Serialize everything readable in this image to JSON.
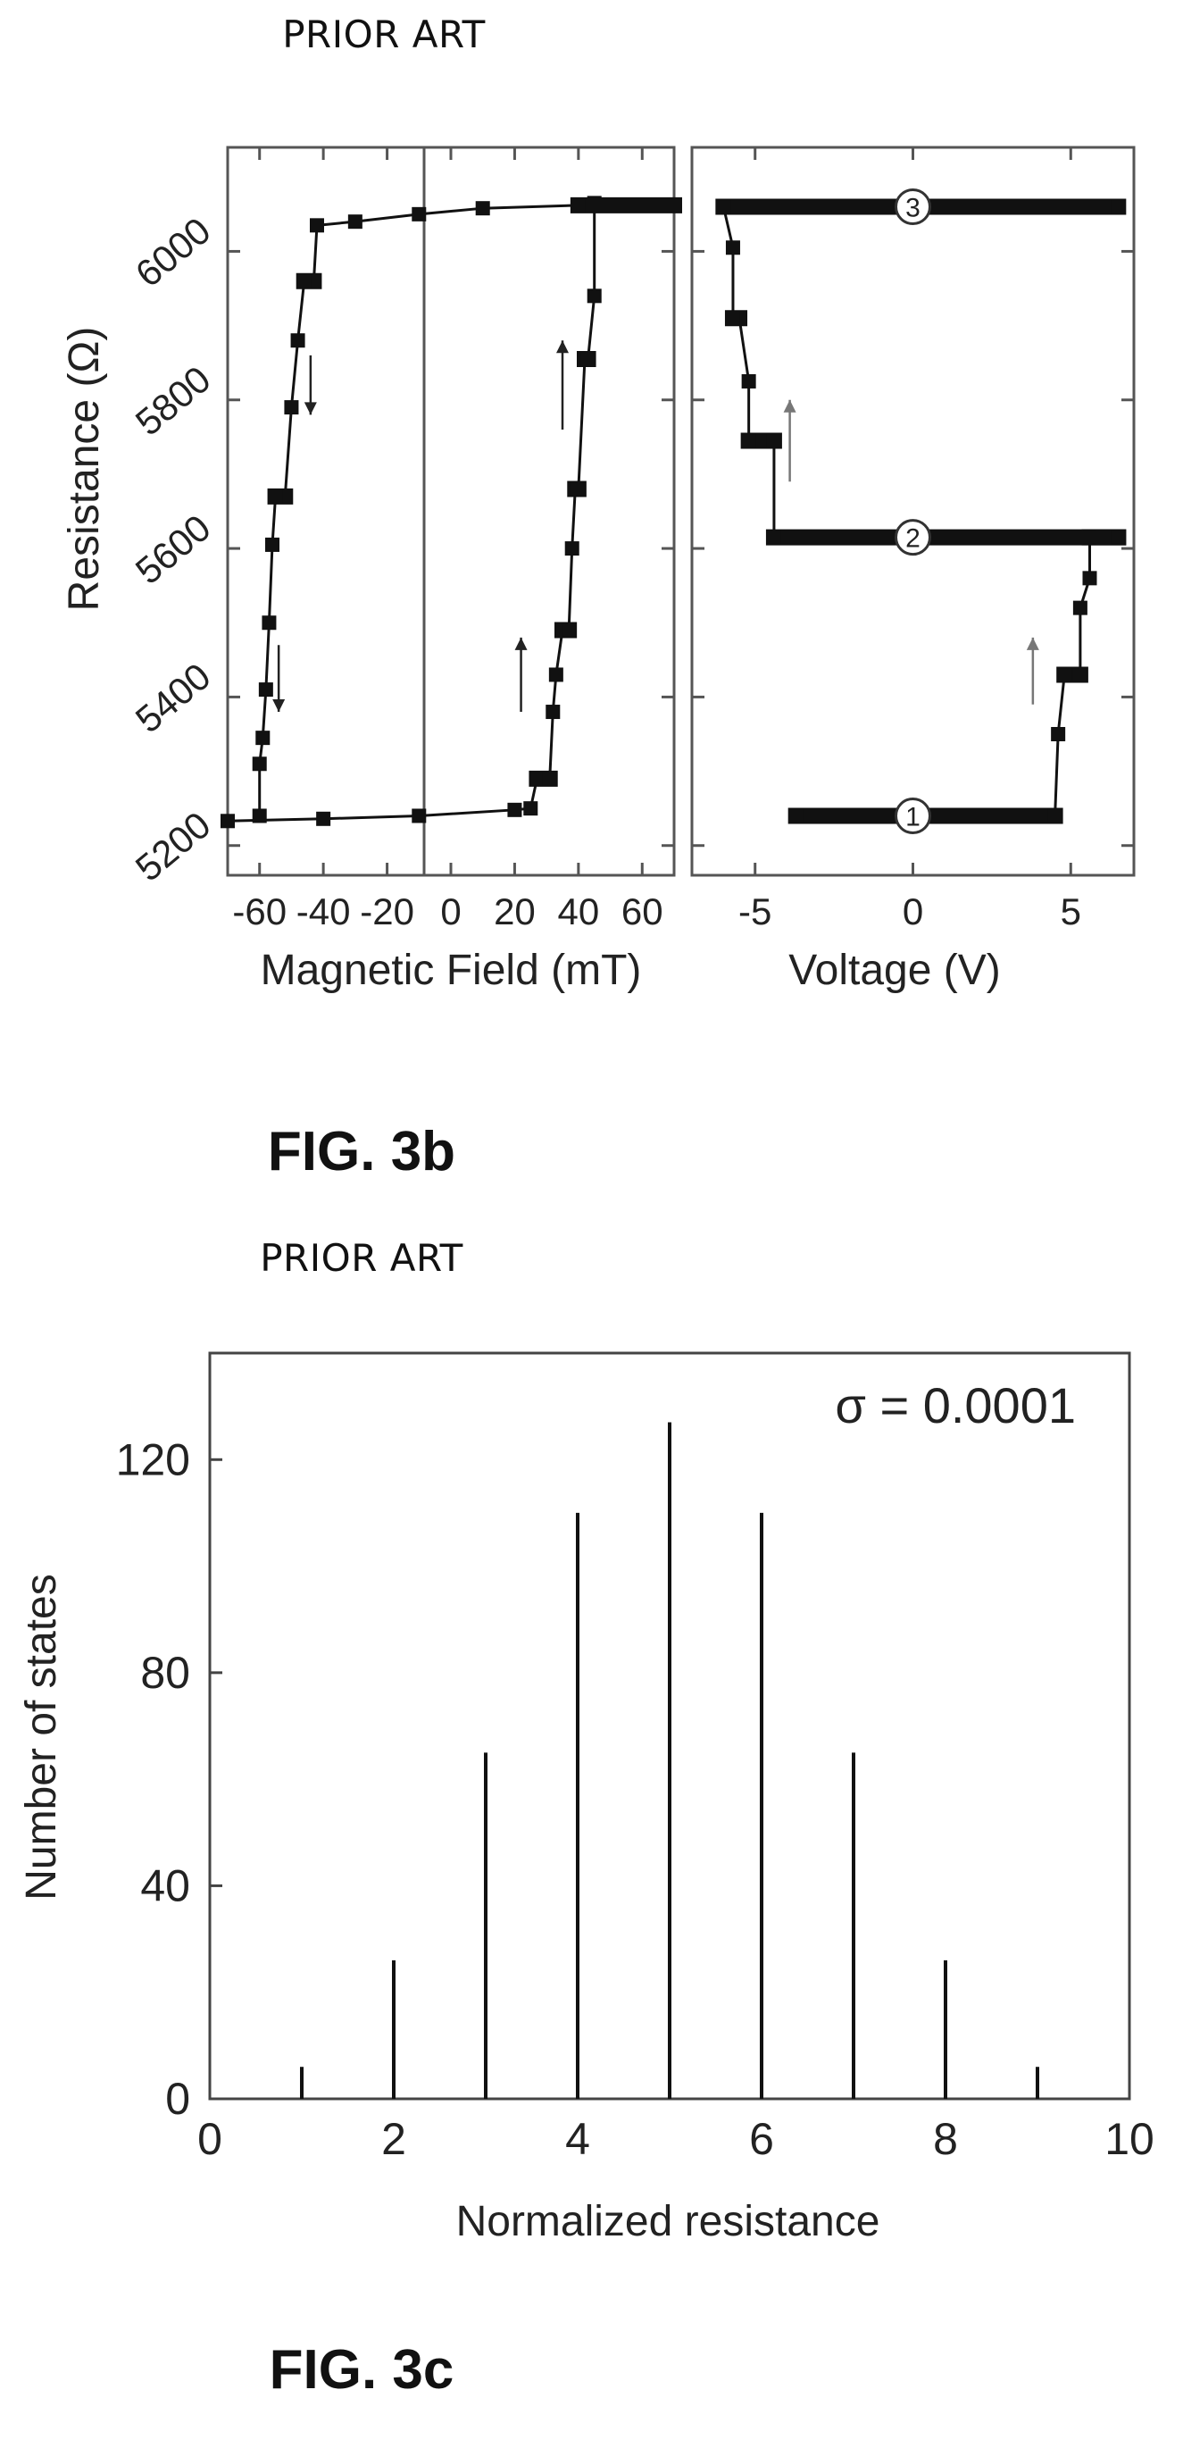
{
  "figure_3b": {
    "prior_art": "PRIOR ART",
    "caption": "FIG. 3b",
    "ylabel": "Resistance (Ω)",
    "left_xlabel": "Magnetic Field (mT)",
    "right_xlabel": "Voltage (V)"
  },
  "figure_3c": {
    "prior_art": "PRIOR ART",
    "caption": "FIG. 3c",
    "annotation": "σ = 0.0001",
    "xlabel": "Normalized resistance",
    "ylabel": "Number of states"
  },
  "chart_data": [
    {
      "type": "line",
      "panel": "left",
      "xlabel": "Magnetic Field (mT)",
      "ylabel": "Resistance (Ω)",
      "xlim": [
        -70,
        70
      ],
      "ylim": [
        5160,
        6140
      ],
      "xticks": [
        -60,
        -40,
        -20,
        0,
        20,
        40,
        60
      ],
      "xtick_labels": [
        "-60",
        "-40",
        "-20",
        "0",
        "20",
        "40",
        "60"
      ],
      "yticks": [
        5200,
        5400,
        5600,
        5800,
        6000
      ],
      "vertical_reference_line": -7,
      "series": [
        {
          "name": "",
          "values": [
            [
              -70,
              5233
            ],
            [
              -40,
              5236
            ],
            [
              -10,
              5240
            ],
            [
              20,
              5248
            ],
            [
              25,
              5250
            ],
            [
              27,
              5290
            ],
            [
              31,
              5290
            ],
            [
              32,
              5380
            ],
            [
              33,
              5430
            ],
            [
              35,
              5490
            ],
            [
              37,
              5490
            ],
            [
              38,
              5600
            ],
            [
              39,
              5680
            ],
            [
              40,
              5680
            ],
            [
              42,
              5855
            ],
            [
              43,
              5855
            ],
            [
              45,
              5940
            ],
            [
              45,
              6065
            ]
          ]
        },
        {
          "name": "",
          "values": [
            [
              70,
              6062
            ],
            [
              40,
              6062
            ],
            [
              10,
              6058
            ],
            [
              -10,
              6050
            ],
            [
              -30,
              6040
            ],
            [
              -42,
              6035
            ],
            [
              -43,
              5960
            ],
            [
              -46,
              5960
            ],
            [
              -48,
              5880
            ],
            [
              -50,
              5790
            ],
            [
              -52,
              5670
            ],
            [
              -55,
              5670
            ],
            [
              -56,
              5605
            ],
            [
              -57,
              5500
            ],
            [
              -58,
              5410
            ],
            [
              -59,
              5345
            ],
            [
              -60,
              5310
            ],
            [
              -60,
              5240
            ]
          ]
        }
      ],
      "arrows": [
        {
          "x": -44,
          "y0": 5860,
          "y1": 5780
        },
        {
          "x": -54,
          "y0": 5470,
          "y1": 5380
        },
        {
          "x": 22,
          "y0": 5380,
          "y1": 5480
        },
        {
          "x": 35,
          "y0": 5760,
          "y1": 5880
        }
      ]
    },
    {
      "type": "line",
      "panel": "right",
      "xlabel": "Voltage (V)",
      "xlim": [
        -7,
        7
      ],
      "ylim": [
        5160,
        6140
      ],
      "xticks": [
        -5,
        0,
        5
      ],
      "xtick_labels": [
        "-5",
        "0",
        "5"
      ],
      "yticks": [
        5200,
        5400,
        5600,
        5800,
        6000
      ],
      "series": [
        {
          "name": "",
          "values": [
            [
              -3.7,
              5240
            ],
            [
              4.5,
              5240
            ],
            [
              4.6,
              5350
            ],
            [
              4.8,
              5430
            ],
            [
              5.3,
              5430
            ],
            [
              5.3,
              5520
            ],
            [
              5.6,
              5560
            ],
            [
              5.6,
              5615
            ],
            [
              6.5,
              5615
            ],
            [
              -4.4,
              5615
            ],
            [
              -4.4,
              5745
            ],
            [
              -5.2,
              5745
            ],
            [
              -5.2,
              5825
            ],
            [
              -5.5,
              5910
            ],
            [
              -5.7,
              5910
            ],
            [
              -5.7,
              6005
            ],
            [
              -6.0,
              6060
            ],
            [
              6.5,
              6060
            ]
          ]
        }
      ],
      "state_labels": [
        {
          "label": "1",
          "x": 0,
          "y": 5240
        },
        {
          "label": "2",
          "x": 0,
          "y": 5615
        },
        {
          "label": "3",
          "x": 0,
          "y": 6060
        }
      ],
      "arrows": [
        {
          "x": 3.8,
          "y0": 5390,
          "y1": 5480
        },
        {
          "x": -3.9,
          "y0": 5690,
          "y1": 5800
        }
      ]
    },
    {
      "type": "bar",
      "xlabel": "Normalized resistance",
      "ylabel": "Number of states",
      "xlim": [
        0,
        10
      ],
      "ylim": [
        0,
        140
      ],
      "xticks": [
        0,
        2,
        4,
        6,
        8,
        10
      ],
      "yticks": [
        0,
        40,
        80,
        120
      ],
      "x": [
        1,
        2,
        3,
        4,
        5,
        6,
        7,
        8,
        9
      ],
      "values": [
        6,
        26,
        65,
        110,
        127,
        110,
        65,
        26,
        6
      ]
    }
  ]
}
